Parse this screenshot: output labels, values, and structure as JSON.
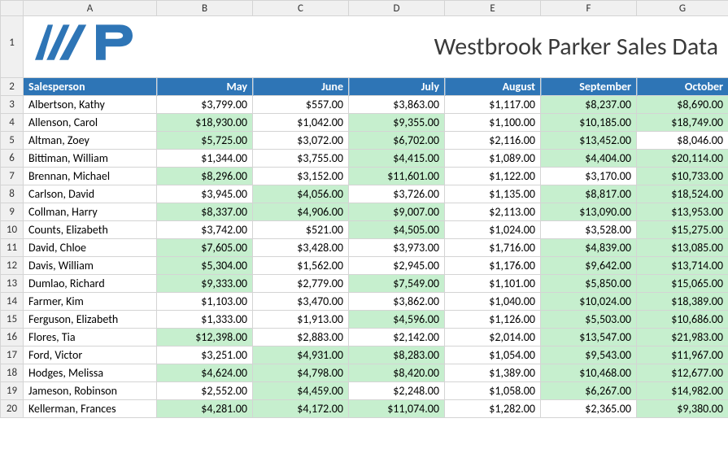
{
  "title": "Westbrook Parker Sales Data",
  "logo_color": "#2e75b6",
  "col_letters": [
    "A",
    "B",
    "C",
    "D",
    "E",
    "F",
    "G"
  ],
  "row_numbers": [
    1,
    2,
    3,
    4,
    5,
    6,
    7,
    8,
    9,
    10,
    11,
    12,
    13,
    14,
    15,
    16,
    17,
    18,
    19,
    20
  ],
  "header_bg": "#2e75b6",
  "highlight_bg": "#c6efce",
  "columns": [
    "Salesperson",
    "May",
    "June",
    "July",
    "August",
    "September",
    "October"
  ],
  "rows": [
    {
      "name": "Albertson, Kathy",
      "vals": [
        3799,
        557,
        3863,
        1117,
        8237,
        8690
      ],
      "hl": [
        0,
        0,
        0,
        0,
        1,
        1
      ]
    },
    {
      "name": "Allenson, Carol",
      "vals": [
        18930,
        1042,
        9355,
        1100,
        10185,
        18749
      ],
      "hl": [
        1,
        0,
        1,
        0,
        1,
        1
      ]
    },
    {
      "name": "Altman, Zoey",
      "vals": [
        5725,
        3072,
        6702,
        2116,
        13452,
        8046
      ],
      "hl": [
        1,
        0,
        1,
        0,
        1,
        0
      ]
    },
    {
      "name": "Bittiman, William",
      "vals": [
        1344,
        3755,
        4415,
        1089,
        4404,
        20114
      ],
      "hl": [
        0,
        0,
        1,
        0,
        1,
        1
      ]
    },
    {
      "name": "Brennan, Michael",
      "vals": [
        8296,
        3152,
        11601,
        1122,
        3170,
        10733
      ],
      "hl": [
        1,
        0,
        1,
        0,
        0,
        1
      ]
    },
    {
      "name": "Carlson, David",
      "vals": [
        3945,
        4056,
        3726,
        1135,
        8817,
        18524
      ],
      "hl": [
        0,
        1,
        0,
        0,
        1,
        1
      ]
    },
    {
      "name": "Collman, Harry",
      "vals": [
        8337,
        4906,
        9007,
        2113,
        13090,
        13953
      ],
      "hl": [
        1,
        1,
        1,
        0,
        1,
        1
      ]
    },
    {
      "name": "Counts, Elizabeth",
      "vals": [
        3742,
        521,
        4505,
        1024,
        3528,
        15275
      ],
      "hl": [
        0,
        0,
        1,
        0,
        0,
        1
      ]
    },
    {
      "name": "David, Chloe",
      "vals": [
        7605,
        3428,
        3973,
        1716,
        4839,
        13085
      ],
      "hl": [
        1,
        0,
        0,
        0,
        1,
        1
      ]
    },
    {
      "name": "Davis, William",
      "vals": [
        5304,
        1562,
        2945,
        1176,
        9642,
        13714
      ],
      "hl": [
        1,
        0,
        0,
        0,
        1,
        1
      ]
    },
    {
      "name": "Dumlao, Richard",
      "vals": [
        9333,
        2779,
        7549,
        1101,
        5850,
        15065
      ],
      "hl": [
        1,
        0,
        1,
        0,
        1,
        1
      ]
    },
    {
      "name": "Farmer, Kim",
      "vals": [
        1103,
        3470,
        3862,
        1040,
        10024,
        18389
      ],
      "hl": [
        0,
        0,
        0,
        0,
        1,
        1
      ]
    },
    {
      "name": "Ferguson, Elizabeth",
      "vals": [
        1333,
        1913,
        4596,
        1126,
        5503,
        10686
      ],
      "hl": [
        0,
        0,
        1,
        0,
        1,
        1
      ]
    },
    {
      "name": "Flores, Tia",
      "vals": [
        12398,
        2883,
        2142,
        2014,
        13547,
        21983
      ],
      "hl": [
        1,
        0,
        0,
        0,
        1,
        1
      ]
    },
    {
      "name": "Ford, Victor",
      "vals": [
        3251,
        4931,
        8283,
        1054,
        9543,
        11967
      ],
      "hl": [
        0,
        1,
        1,
        0,
        1,
        1
      ]
    },
    {
      "name": "Hodges, Melissa",
      "vals": [
        4624,
        4798,
        8420,
        1389,
        10468,
        12677
      ],
      "hl": [
        1,
        1,
        1,
        0,
        1,
        1
      ]
    },
    {
      "name": "Jameson, Robinson",
      "vals": [
        2552,
        4459,
        2248,
        1058,
        6267,
        14982
      ],
      "hl": [
        0,
        1,
        0,
        0,
        1,
        1
      ]
    },
    {
      "name": "Kellerman, Frances",
      "vals": [
        4281,
        4172,
        11074,
        1282,
        2365,
        9380
      ],
      "hl": [
        1,
        1,
        1,
        0,
        0,
        1
      ]
    }
  ]
}
